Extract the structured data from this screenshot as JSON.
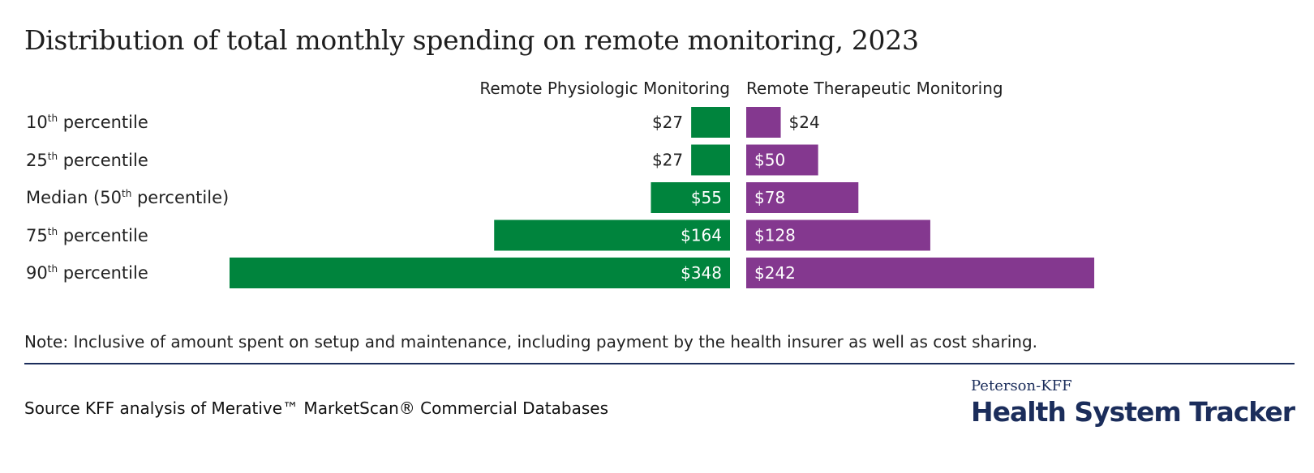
{
  "title": "Distribution of total monthly spending on remote monitoring, 2023",
  "categories": [
    {
      "pre": "10",
      "sup": "th",
      "post": " percentile"
    },
    {
      "pre": "25",
      "sup": "th",
      "post": " percentile"
    },
    {
      "pre": "Median (50",
      "sup": "th",
      "post": " percentile)"
    },
    {
      "pre": "75",
      "sup": "th",
      "post": " percentile"
    },
    {
      "pre": "90",
      "sup": "th",
      "post": " percentile"
    }
  ],
  "chart_data": {
    "type": "bar",
    "categories": [
      "10th percentile",
      "25th percentile",
      "Median (50th percentile)",
      "75th percentile",
      "90th percentile"
    ],
    "series": [
      {
        "name": "Remote Physiologic Monitoring",
        "values": [
          27,
          27,
          55,
          164,
          348
        ],
        "labels": [
          "$27",
          "$27",
          "$55",
          "$164",
          "$348"
        ],
        "color": "#00843d",
        "direction": "left"
      },
      {
        "name": "Remote Therapeutic Monitoring",
        "values": [
          24,
          50,
          78,
          128,
          242
        ],
        "labels": [
          "$24",
          "$50",
          "$78",
          "$128",
          "$242"
        ],
        "color": "#84388f",
        "direction": "right"
      }
    ],
    "xlabel": "",
    "ylabel": ""
  },
  "note": "Note: Inclusive of amount spent on setup and maintenance, including payment by the health insurer as well as cost sharing.",
  "source": "Source KFF analysis of Merative™ MarketScan® Commercial Databases",
  "logo": {
    "top": "Peterson-KFF",
    "main": "Health System Tracker"
  },
  "colors": {
    "physiologic": "#00843d",
    "therapeutic": "#84388f",
    "brand": "#1b2d5b"
  }
}
